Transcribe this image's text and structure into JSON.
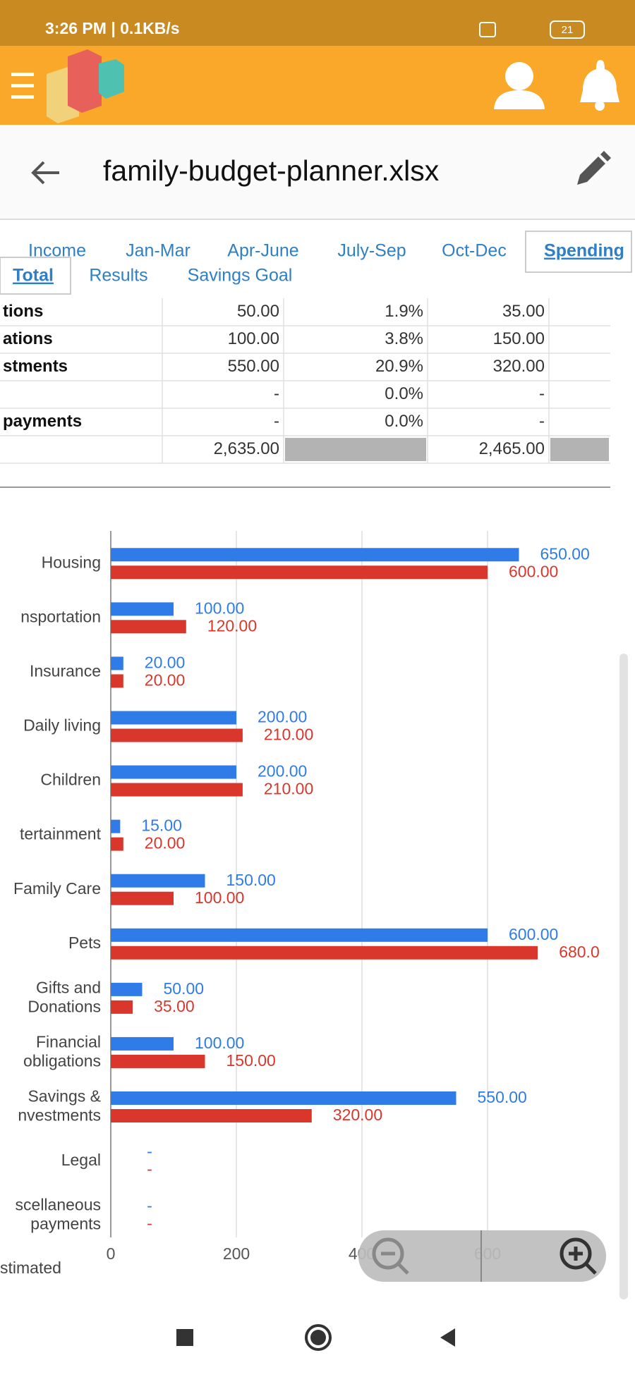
{
  "status_bar": {
    "time": "3:26 PM | 0.1KB/s",
    "battery": "21"
  },
  "toolbar": {
    "file_name": "family-budget-planner.xlsx"
  },
  "tabs": {
    "row1": [
      "Income",
      "Jan-Mar",
      "Apr-June",
      "July-Sep",
      "Oct-Dec",
      "Spending"
    ],
    "row2": [
      "Total",
      "Results",
      "Savings Goal"
    ]
  },
  "table": {
    "rows": [
      [
        "tions",
        "50.00",
        "1.9%",
        "35.00"
      ],
      [
        "ations",
        "100.00",
        "3.8%",
        "150.00"
      ],
      [
        "stments",
        "550.00",
        "20.9%",
        "320.00"
      ],
      [
        null,
        "-",
        "0.0%",
        "-"
      ],
      [
        "payments",
        "-",
        "0.0%",
        "-"
      ],
      [
        null,
        "2,635.00",
        null,
        "2,465.00"
      ]
    ]
  },
  "chart_data": {
    "type": "bar",
    "orientation": "horizontal",
    "categories": [
      [
        "Housing"
      ],
      [
        "nsportation"
      ],
      [
        "Insurance"
      ],
      [
        "Daily living"
      ],
      [
        "Children"
      ],
      [
        "tertainment"
      ],
      [
        "Family Care"
      ],
      [
        "Pets"
      ],
      [
        "Gifts and",
        "Donations"
      ],
      [
        "Financial",
        "obligations"
      ],
      [
        "Savings &",
        "nvestments"
      ],
      [
        "Legal"
      ],
      [
        "scellaneous",
        "payments"
      ]
    ],
    "series": [
      {
        "color": "#2f7be8",
        "values": [
          650,
          100,
          20,
          200,
          200,
          15,
          150,
          600,
          50,
          100,
          550,
          null,
          null
        ],
        "value_labels": [
          "650.00",
          "100.00",
          "20.00",
          "200.00",
          "200.00",
          "15.00",
          "150.00",
          "600.00",
          "50.00",
          "100.00",
          "550.00",
          "-",
          "-"
        ]
      },
      {
        "color": "#d9372b",
        "values": [
          600,
          120,
          20,
          210,
          210,
          20,
          100,
          680,
          35,
          150,
          320,
          null,
          null
        ],
        "value_labels": [
          "600.00",
          "120.00",
          "20.00",
          "210.00",
          "210.00",
          "20.00",
          "100.00",
          "680.0",
          "35.00",
          "150.00",
          "320.00",
          "-",
          "-"
        ]
      }
    ],
    "xlim": [
      0,
      800
    ],
    "xticks": [
      0,
      200,
      400,
      600
    ],
    "grid": true
  },
  "footer": {
    "label": "stimated"
  }
}
